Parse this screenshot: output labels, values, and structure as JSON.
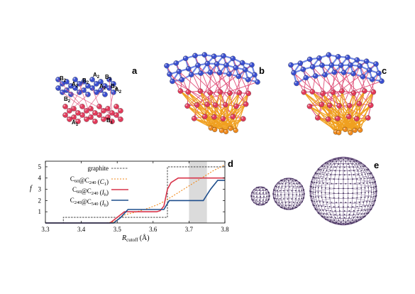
{
  "panels": {
    "a": "a",
    "b": "b",
    "c": "c",
    "d": "d",
    "e": "e"
  },
  "panel_a_site_labels": [
    "B2",
    "A2",
    "B2",
    "A2",
    "B2",
    "A2",
    "B2",
    "A2",
    "B2",
    "A1",
    "B1"
  ],
  "panel_a_site_labels_display": [
    {
      "base": "B",
      "sub": "2"
    },
    {
      "base": "A",
      "sub": "2"
    },
    {
      "base": "B",
      "sub": "2"
    },
    {
      "base": "A",
      "sub": "2"
    },
    {
      "base": "B",
      "sub": "2"
    },
    {
      "base": "A",
      "sub": "2"
    },
    {
      "base": "B",
      "sub": "2"
    },
    {
      "base": "A",
      "sub": "2"
    },
    {
      "base": "B",
      "sub": "2"
    },
    {
      "base": "A",
      "sub": "1"
    },
    {
      "base": "B",
      "sub": "1"
    }
  ],
  "colors": {
    "blue_atom": "#3a4fd0",
    "red_atom": "#e23a5a",
    "orange_atom": "#f08a1c",
    "bond_pink": "#e0507a",
    "bond_orange": "#f0a020",
    "graphite": "#555555",
    "c1": "#f08a1c",
    "ih240": "#d8344a",
    "ih540": "#1f4e8c",
    "shade": "#cccccc",
    "fullerene": "#6a5080"
  },
  "chart_data": {
    "type": "line",
    "xlabel": "R",
    "xlabel_sub": "cutoff",
    "xlabel_unit": "(Å)",
    "ylabel": "f",
    "xlim": [
      3.3,
      3.8
    ],
    "ylim": [
      0,
      5.5
    ],
    "xticks": [
      "3.3",
      "3.4",
      "3.5",
      "3.6",
      "3.7",
      "3.8"
    ],
    "yticks": [
      "1",
      "2",
      "3",
      "4",
      "5"
    ],
    "shaded_regions": [
      [
        3.7,
        3.75
      ]
    ],
    "series": [
      {
        "name": "graphite",
        "style": "dashed",
        "color": "#555555",
        "x": [
          3.3,
          3.35,
          3.35,
          3.64,
          3.64,
          3.8
        ],
        "y": [
          0.0,
          0.0,
          0.5,
          0.5,
          5.0,
          5.0
        ]
      },
      {
        "name": "C60@C240 (C1)",
        "style": "dashed",
        "color": "#f08a1c",
        "x": [
          3.47,
          3.49,
          3.5,
          3.51,
          3.52,
          3.53,
          3.55,
          3.57,
          3.59,
          3.61,
          3.63,
          3.65,
          3.67,
          3.69,
          3.71,
          3.73,
          3.75,
          3.77,
          3.79,
          3.8
        ],
        "y": [
          0.0,
          0.1,
          0.3,
          0.5,
          0.7,
          0.8,
          0.95,
          1.15,
          1.35,
          1.6,
          1.9,
          2.3,
          2.7,
          3.1,
          3.5,
          3.9,
          4.3,
          4.7,
          5.0,
          5.2
        ]
      },
      {
        "name": "C60@C240 (Ih)",
        "style": "solid",
        "color": "#d8344a",
        "x": [
          3.3,
          3.48,
          3.5,
          3.52,
          3.55,
          3.58,
          3.61,
          3.62,
          3.63,
          3.64,
          3.65,
          3.67,
          3.7,
          3.8
        ],
        "y": [
          0.0,
          0.0,
          0.5,
          1.0,
          1.0,
          1.0,
          1.0,
          1.1,
          1.5,
          3.0,
          3.6,
          4.0,
          4.0,
          4.0
        ]
      },
      {
        "name": "C240@C540 (Ih)",
        "style": "solid",
        "color": "#1f4e8c",
        "x": [
          3.3,
          3.49,
          3.51,
          3.53,
          3.6,
          3.63,
          3.645,
          3.66,
          3.74,
          3.76,
          3.78,
          3.8
        ],
        "y": [
          0.0,
          0.0,
          0.5,
          1.2,
          1.2,
          1.2,
          2.0,
          2.0,
          2.0,
          3.0,
          3.8,
          3.8
        ]
      }
    ],
    "legend": [
      {
        "base": "graphite",
        "parts": []
      },
      {
        "parts": [
          [
            "C",
            "60"
          ],
          [
            "@C",
            "240"
          ]
        ],
        "paren": "C",
        "paren_sub": "1"
      },
      {
        "parts": [
          [
            "C",
            "60"
          ],
          [
            "@C",
            "240"
          ]
        ],
        "paren": "I",
        "paren_sub": "h"
      },
      {
        "parts": [
          [
            "C",
            "240"
          ],
          [
            "@C",
            "540"
          ]
        ],
        "paren": "I",
        "paren_sub": "h"
      }
    ],
    "legend_position": "top-left"
  }
}
